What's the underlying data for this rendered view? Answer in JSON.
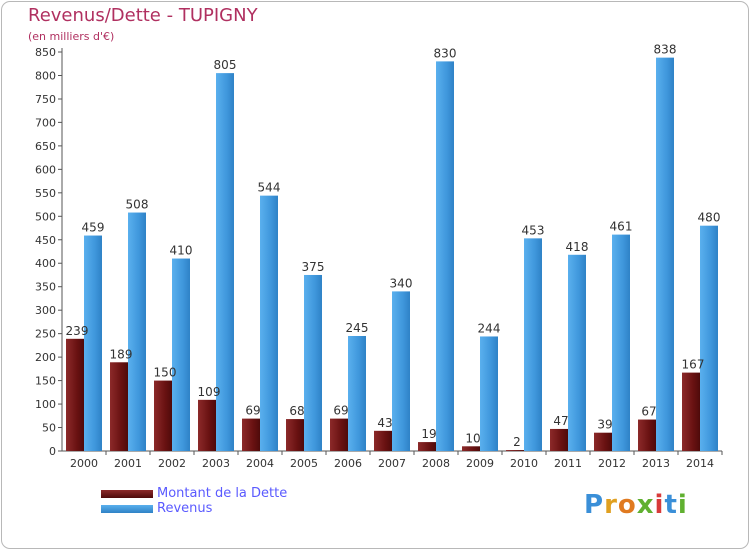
{
  "header": {
    "title": "Revenus/Dette - TUPIGNY",
    "subtitle": "(en milliers d'€)"
  },
  "legend": {
    "items": [
      {
        "label": "Montant de la Dette",
        "color": "#7a1a1a"
      },
      {
        "label": "Revenus",
        "color": "#4aa3e8"
      }
    ]
  },
  "logo": {
    "text": "Proxiti"
  },
  "colors": {
    "debt": "#7a1a1a",
    "revenue": "#4aa3e8",
    "title": "#b03060",
    "legend_text": "#5a5aff"
  },
  "chart_data": {
    "type": "bar",
    "title": "Revenus/Dette - TUPIGNY",
    "subtitle": "(en milliers d'€)",
    "xlabel": "",
    "ylabel": "",
    "ylim": [
      0,
      850
    ],
    "yticks": [
      0,
      50,
      100,
      150,
      200,
      250,
      300,
      350,
      400,
      450,
      500,
      550,
      600,
      650,
      700,
      750,
      800,
      850
    ],
    "grid": false,
    "legend_position": "bottom-left",
    "categories": [
      "2000",
      "2001",
      "2002",
      "2003",
      "2004",
      "2005",
      "2006",
      "2007",
      "2008",
      "2009",
      "2010",
      "2011",
      "2012",
      "2013",
      "2014"
    ],
    "series": [
      {
        "name": "Montant de la Dette",
        "values": [
          239,
          189,
          150,
          109,
          69,
          68,
          69,
          43,
          19,
          10,
          2,
          47,
          39,
          67,
          167
        ]
      },
      {
        "name": "Revenus",
        "values": [
          459,
          508,
          410,
          805,
          544,
          375,
          245,
          340,
          830,
          244,
          453,
          418,
          461,
          838,
          480
        ]
      }
    ]
  }
}
